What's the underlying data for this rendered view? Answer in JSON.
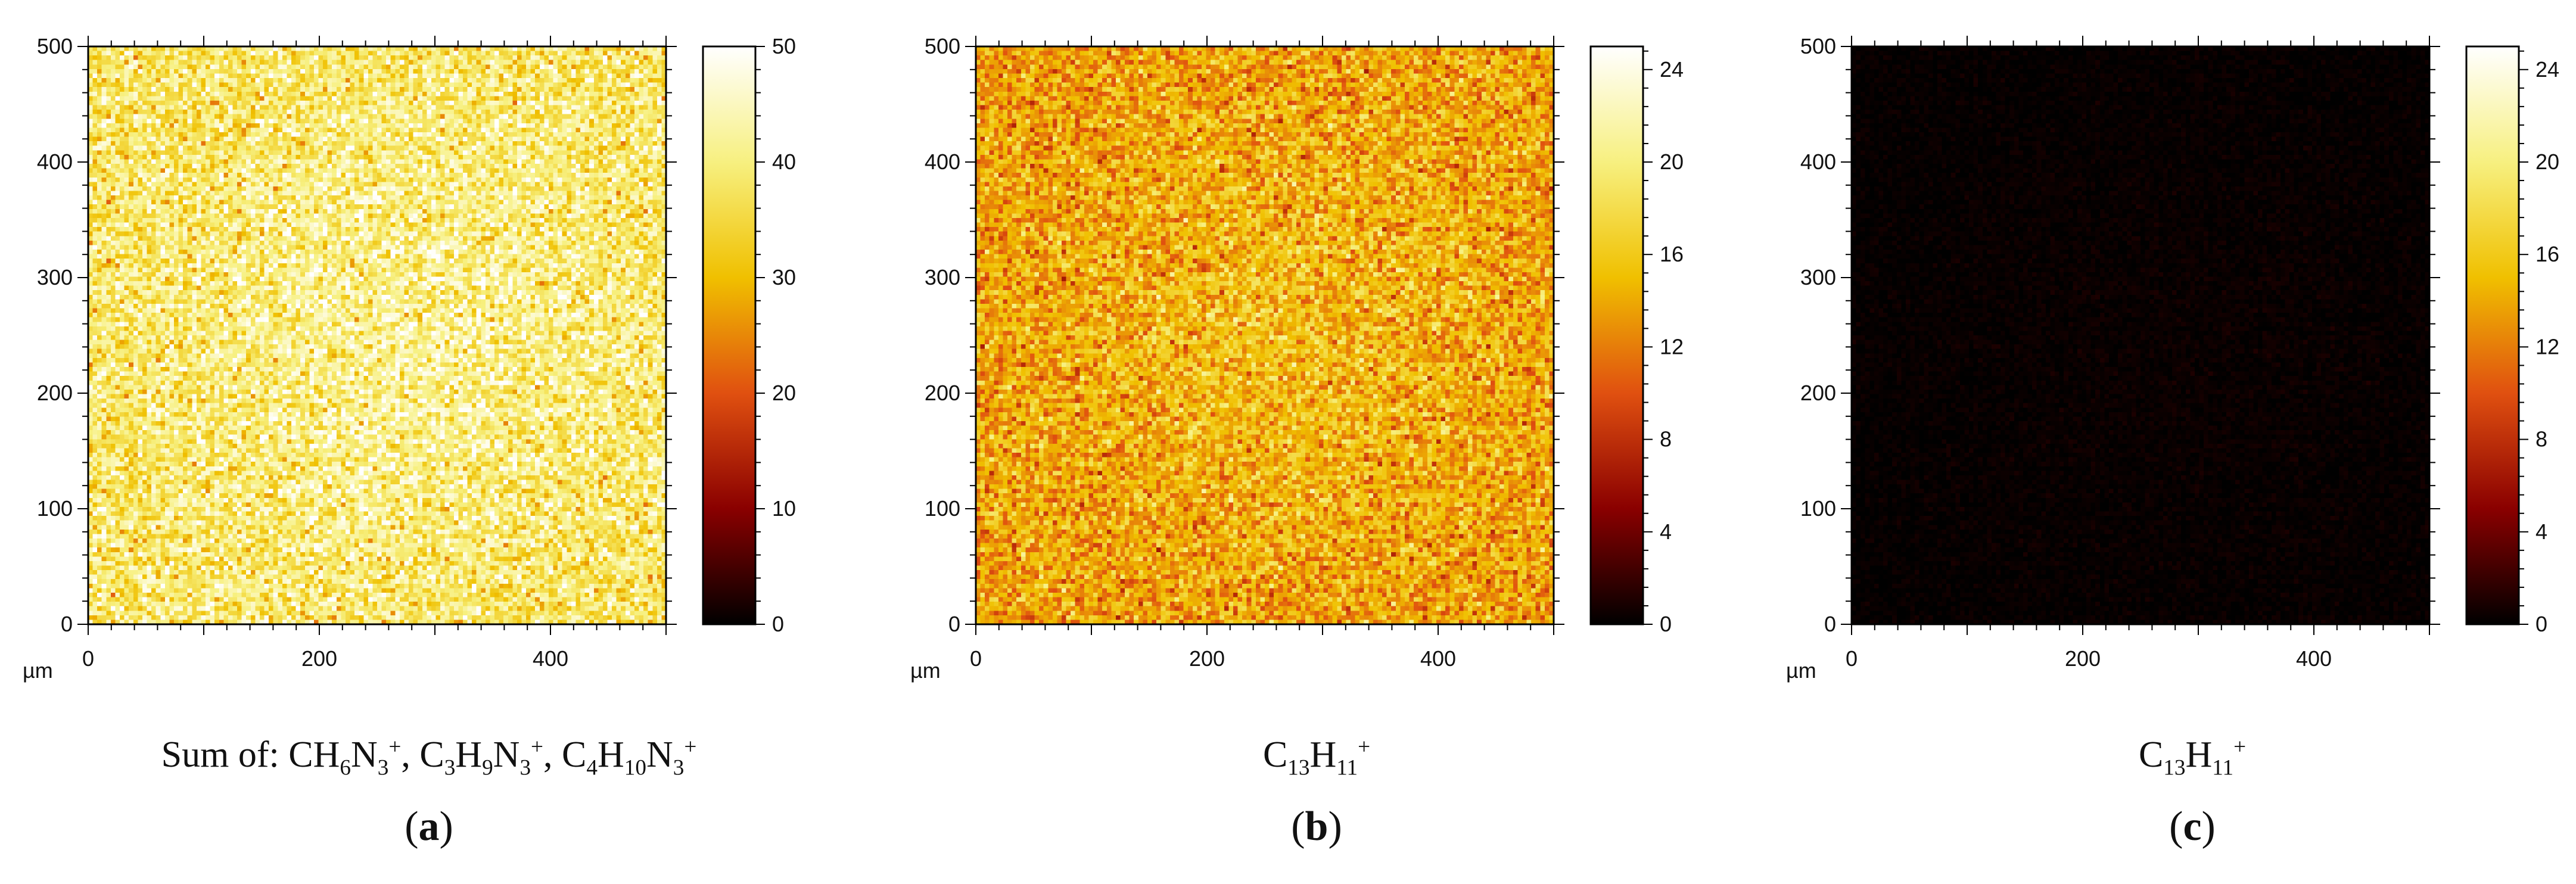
{
  "charts": [
    {
      "id": "a",
      "caption_formula": "Sum of: CH6N3+, C3H9N3+, C4H10N3+",
      "caption_letter": "a",
      "chart_data": {
        "type": "heatmap",
        "xunit": "µm",
        "xlim": [
          0,
          500
        ],
        "ylim": [
          0,
          500
        ],
        "x_ticks": [
          0,
          200,
          400
        ],
        "y_ticks": [
          0,
          100,
          200,
          300,
          400,
          500
        ],
        "colorbar": {
          "range": [
            0,
            50
          ],
          "ticks": [
            0,
            10,
            20,
            30,
            40,
            50
          ]
        },
        "colormap": [
          "#000000",
          "#8a0000",
          "#e05010",
          "#f0c000",
          "#f7f080",
          "#ffffff"
        ],
        "grid_size": 128,
        "intensity_mean": 38,
        "intensity_spread": 8,
        "gradient": "brighter toward center-right"
      }
    },
    {
      "id": "b",
      "caption_formula": "C13H11+",
      "caption_letter": "b",
      "chart_data": {
        "type": "heatmap",
        "xunit": "µm",
        "xlim": [
          0,
          500
        ],
        "ylim": [
          0,
          500
        ],
        "x_ticks": [
          0,
          200,
          400
        ],
        "y_ticks": [
          0,
          100,
          200,
          300,
          400,
          500
        ],
        "colorbar": {
          "range": [
            0,
            25
          ],
          "ticks": [
            0,
            4,
            8,
            12,
            16,
            20,
            24
          ]
        },
        "colormap": [
          "#000000",
          "#8a0000",
          "#e05010",
          "#f0c000",
          "#f7f080",
          "#ffffff"
        ],
        "grid_size": 128,
        "intensity_mean": 13.5,
        "intensity_spread": 3.5,
        "gradient": "slightly brighter in center"
      }
    },
    {
      "id": "c",
      "caption_formula": "C13H11+",
      "caption_letter": "c",
      "chart_data": {
        "type": "heatmap",
        "xunit": "µm",
        "xlim": [
          0,
          500
        ],
        "ylim": [
          0,
          500
        ],
        "x_ticks": [
          0,
          200,
          400
        ],
        "y_ticks": [
          0,
          100,
          200,
          300,
          400,
          500
        ],
        "colorbar": {
          "range": [
            0,
            25
          ],
          "ticks": [
            0,
            4,
            8,
            12,
            16,
            20,
            24
          ]
        },
        "colormap": [
          "#000000",
          "#8a0000",
          "#e05010",
          "#f0c000",
          "#f7f080",
          "#ffffff"
        ],
        "grid_size": 128,
        "intensity_mean": 0.15,
        "intensity_spread": 0.4,
        "gradient": "none (near zero everywhere)"
      }
    }
  ]
}
